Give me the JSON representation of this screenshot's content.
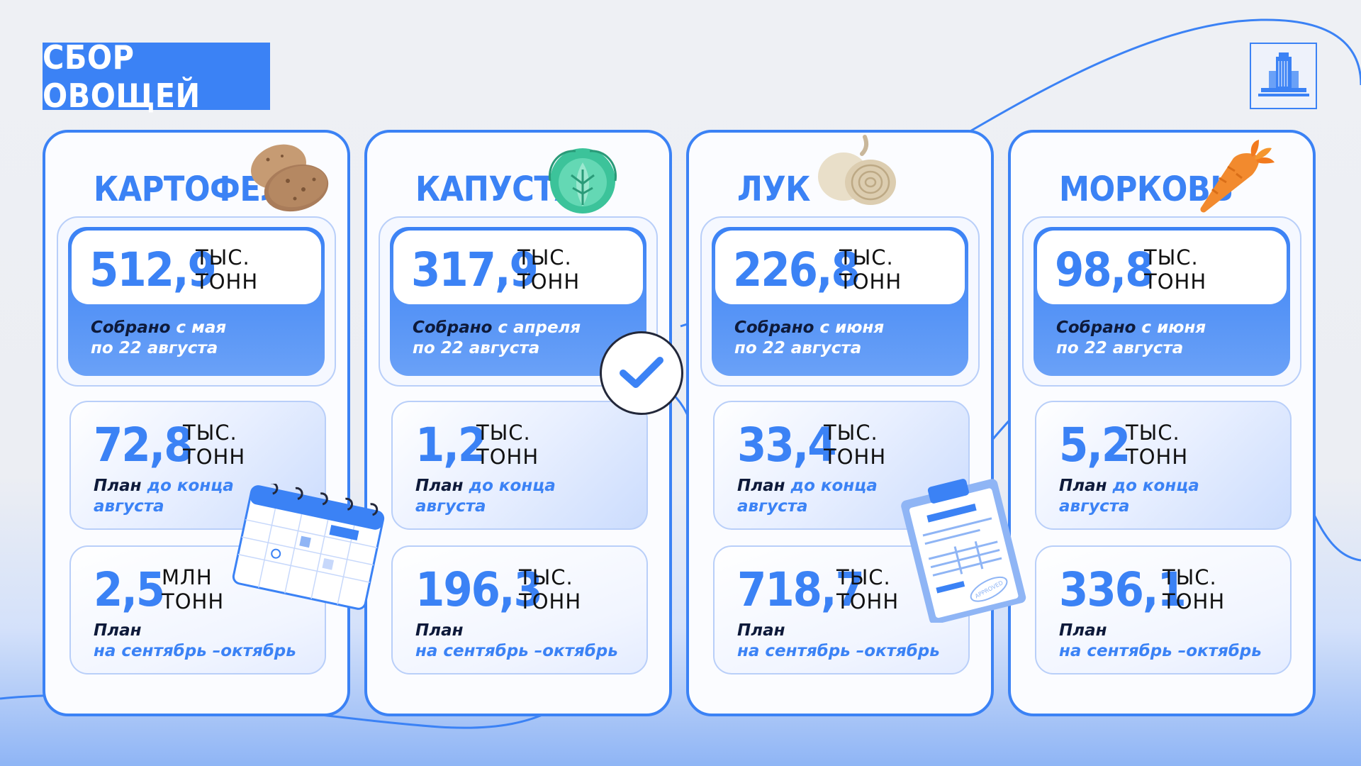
{
  "title": "СБОР ОВОЩЕЙ",
  "colors": {
    "accent": "#3b82f5",
    "text_dark": "#0e1a3a",
    "background": "#eef0f4"
  },
  "logo": {
    "icon": "building-logo-icon"
  },
  "columns": [
    {
      "name": "КАРТОФЕЛЬ",
      "icon": "potato-icon",
      "main": {
        "value": "512,9",
        "unit1": "ТЫС.",
        "unit2": "ТОНН",
        "cap_a": "Собрано",
        "cap_b": " с мая",
        "cap_c": "по 22 августа"
      },
      "plan1": {
        "value": "72,8",
        "unit1": "ТЫС.",
        "unit2": "ТОНН",
        "cap_a": "План",
        "cap_b": " до конца",
        "cap_c": "августа"
      },
      "plan2": {
        "value": "2,5",
        "unit1": "МЛН",
        "unit2": "ТОНН",
        "cap_a": "План",
        "cap_c": "на сентябрь –октябрь"
      }
    },
    {
      "name": "КАПУСТА",
      "icon": "cabbage-icon",
      "main": {
        "value": "317,9",
        "unit1": "ТЫС.",
        "unit2": "ТОНН",
        "cap_a": "Собрано",
        "cap_b": " с апреля",
        "cap_c": "по 22 августа"
      },
      "plan1": {
        "value": "1,2",
        "unit1": "ТЫС.",
        "unit2": "ТОНН",
        "cap_a": "План",
        "cap_b": " до конца",
        "cap_c": "августа"
      },
      "plan2": {
        "value": "196,3",
        "unit1": "ТЫС.",
        "unit2": "ТОНН",
        "cap_a": "План",
        "cap_c": "на сентябрь –октябрь"
      }
    },
    {
      "name": "ЛУК",
      "icon": "onion-icon",
      "main": {
        "value": "226,8",
        "unit1": "ТЫС.",
        "unit2": "ТОНН",
        "cap_a": "Собрано",
        "cap_b": " с июня",
        "cap_c": "по 22 августа"
      },
      "plan1": {
        "value": "33,4",
        "unit1": "ТЫС.",
        "unit2": "ТОНН",
        "cap_a": "План",
        "cap_b": " до конца",
        "cap_c": "августа"
      },
      "plan2": {
        "value": "718,7",
        "unit1": "ТЫС.",
        "unit2": "ТОНН",
        "cap_a": "План",
        "cap_c": "на сентябрь –октябрь"
      }
    },
    {
      "name": "МОРКОВЬ",
      "icon": "carrot-icon",
      "main": {
        "value": "98,8",
        "unit1": "ТЫС.",
        "unit2": "ТОНН",
        "cap_a": "Собрано",
        "cap_b": " с июня",
        "cap_c": "по 22 августа"
      },
      "plan1": {
        "value": "5,2",
        "unit1": "ТЫС.",
        "unit2": "ТОНН",
        "cap_a": "План",
        "cap_b": " до конца",
        "cap_c": "августа"
      },
      "plan2": {
        "value": "336,1",
        "unit1": "ТЫС.",
        "unit2": "ТОНН",
        "cap_a": "План",
        "cap_c": "на сентябрь –октябрь"
      }
    }
  ],
  "decor": {
    "check": "checkmark-icon",
    "calendar": "calendar-icon",
    "clipboard": "clipboard-icon",
    "stamp_text": "APPROVED"
  }
}
